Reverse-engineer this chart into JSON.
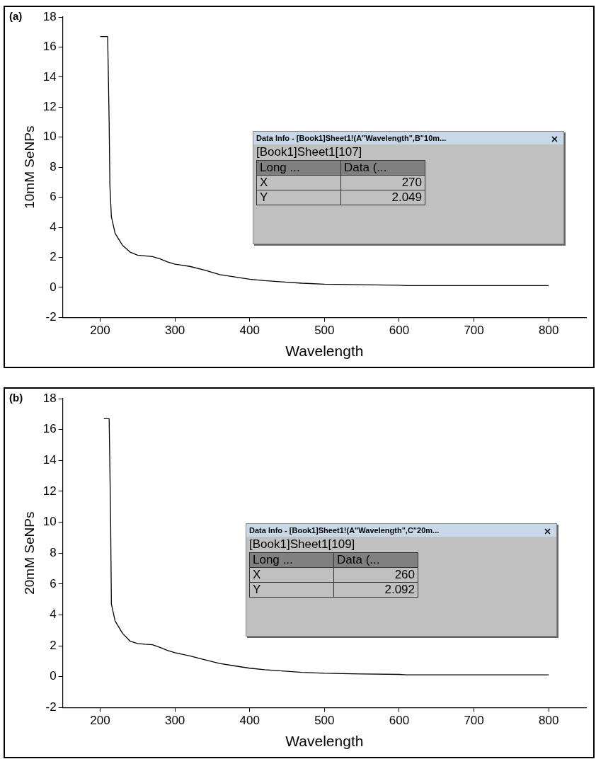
{
  "chart_data": [
    {
      "type": "line",
      "title": "(a)",
      "xlabel": "Wavelength",
      "ylabel": "10mM SeNPs",
      "annotations": [
        "Data Info - [Book1]Sheet1!(A\"Wavelength\",B\"10m...",
        "[Book1]Sheet1[107]",
        "Long ...",
        "Data (...",
        "X",
        "270",
        "Y",
        "2.049"
      ],
      "x": [
        200,
        210,
        211,
        212,
        213,
        215,
        220,
        230,
        240,
        250,
        260,
        270,
        280,
        290,
        300,
        320,
        340,
        360,
        380,
        400,
        420,
        450,
        470,
        500,
        550,
        600,
        610,
        700,
        800
      ],
      "series": [
        {
          "color": "#000000",
          "values": [
            16.7,
            16.7,
            14,
            11,
            6.8,
            4.7,
            3.6,
            2.8,
            2.35,
            2.15,
            2.1,
            2.05,
            1.9,
            1.7,
            1.55,
            1.4,
            1.15,
            0.85,
            0.7,
            0.55,
            0.45,
            0.35,
            0.28,
            0.22,
            0.18,
            0.15,
            0.12,
            0.12,
            0.12
          ]
        }
      ],
      "xlim": [
        150,
        850
      ],
      "xticks": [
        200,
        300,
        400,
        500,
        600,
        700,
        800
      ],
      "ylim": [
        -2,
        18
      ],
      "yticks": [
        -2,
        0,
        2,
        4,
        6,
        8,
        10,
        12,
        14,
        16,
        18
      ],
      "grid": false,
      "legend": false,
      "marker": "none",
      "line_style": "solid"
    },
    {
      "type": "line",
      "title": "(b)",
      "xlabel": "Wavelength",
      "ylabel": "20mM SeNPs",
      "annotations": [
        "Data Info - [Book1]Sheet1!(A\"Wavelength\",C\"20m...",
        "[Book1]Sheet1[109]",
        "Long ...",
        "Data (...",
        "X",
        "260",
        "Y",
        "2.092"
      ],
      "x": [
        205,
        212,
        213,
        214,
        215,
        220,
        230,
        240,
        250,
        260,
        270,
        280,
        290,
        300,
        320,
        340,
        360,
        380,
        400,
        420,
        450,
        470,
        500,
        550,
        600,
        610,
        700,
        800
      ],
      "series": [
        {
          "color": "#000000",
          "values": [
            16.7,
            16.7,
            13.5,
            10,
            4.7,
            3.6,
            2.8,
            2.3,
            2.15,
            2.1,
            2.07,
            1.9,
            1.7,
            1.55,
            1.35,
            1.1,
            0.85,
            0.7,
            0.55,
            0.45,
            0.35,
            0.28,
            0.22,
            0.18,
            0.15,
            0.12,
            0.12,
            0.12
          ]
        }
      ],
      "xlim": [
        150,
        850
      ],
      "xticks": [
        200,
        300,
        400,
        500,
        600,
        700,
        800
      ],
      "ylim": [
        -2,
        18
      ],
      "yticks": [
        -2,
        0,
        2,
        4,
        6,
        8,
        10,
        12,
        14,
        16,
        18
      ],
      "grid": false,
      "legend": false,
      "marker": "none",
      "line_style": "solid"
    }
  ]
}
